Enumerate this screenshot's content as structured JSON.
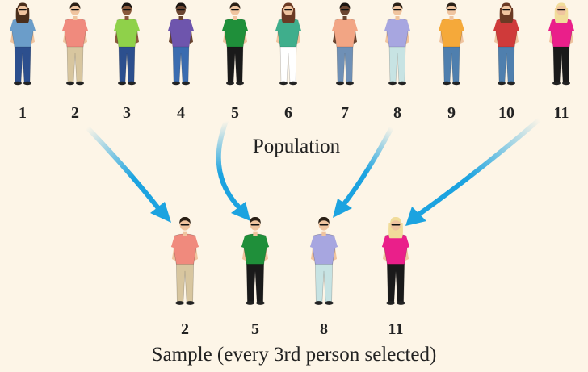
{
  "population": {
    "label": "Population",
    "people": [
      {
        "number": "1",
        "shirt": "#6b9dc9",
        "pants": "#2c4f8e",
        "hair": "#4a2e1b",
        "skin": "#f0c49f",
        "long_hair": true
      },
      {
        "number": "2",
        "shirt": "#f08a7d",
        "pants": "#d8c69f",
        "hair": "#2a1f15",
        "skin": "#f0c49f",
        "long_hair": false
      },
      {
        "number": "3",
        "shirt": "#8fd14a",
        "pants": "#2c4f8e",
        "hair": "#1a1410",
        "skin": "#8a5a3c",
        "long_hair": false
      },
      {
        "number": "4",
        "shirt": "#6e55ad",
        "pants": "#3a6cb0",
        "hair": "#1a1410",
        "skin": "#6b4530",
        "long_hair": false
      },
      {
        "number": "5",
        "shirt": "#1f8f3a",
        "pants": "#1a1a1a",
        "hair": "#2a1f15",
        "skin": "#f0c49f",
        "long_hair": false
      },
      {
        "number": "6",
        "shirt": "#3fae8c",
        "pants": "#ffffff",
        "hair": "#6b3a24",
        "skin": "#f0c49f",
        "long_hair": true
      },
      {
        "number": "7",
        "shirt": "#f2a584",
        "pants": "#6f90b6",
        "hair": "#1a1410",
        "skin": "#6b4530",
        "long_hair": false
      },
      {
        "number": "8",
        "shirt": "#a7a6e0",
        "pants": "#c7e3e3",
        "hair": "#2a1f15",
        "skin": "#f0c49f",
        "long_hair": false
      },
      {
        "number": "9",
        "shirt": "#f5a93a",
        "pants": "#4f7fae",
        "hair": "#2a1f15",
        "skin": "#f0c49f",
        "long_hair": false
      },
      {
        "number": "10",
        "shirt": "#cf3a3a",
        "pants": "#4f7fae",
        "hair": "#6b3a24",
        "skin": "#f0c49f",
        "long_hair": true
      },
      {
        "number": "11",
        "shirt": "#ea1f8a",
        "pants": "#1a1a1a",
        "hair": "#f1dc9a",
        "skin": "#f0c49f",
        "long_hair": true
      }
    ]
  },
  "sample": {
    "label": "Sample (every 3rd person selected)",
    "selected": [
      "2",
      "5",
      "8",
      "11"
    ]
  },
  "colors": {
    "background": "#fdf5e7",
    "arrow": "#1ca3e0"
  }
}
